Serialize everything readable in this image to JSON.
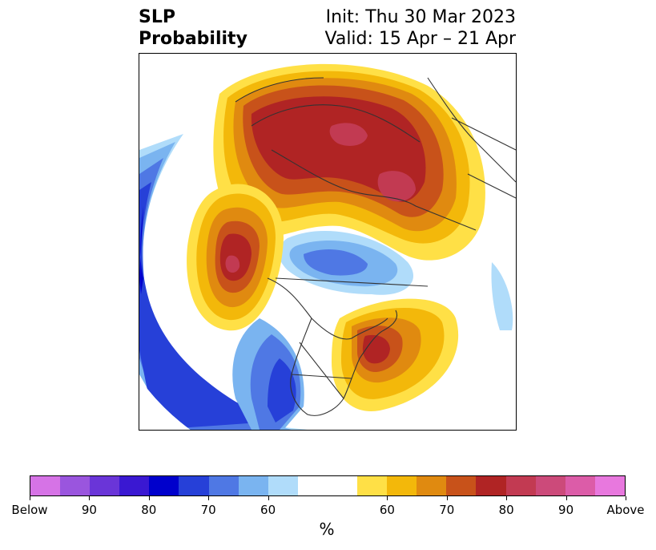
{
  "title": {
    "left_line1": "SLP",
    "left_line2": "Probability",
    "right_line1": "Init: Thu 30 Mar 2023",
    "right_line2": "Valid: 15 Apr – 21 Apr"
  },
  "colorbar": {
    "unit": "%",
    "colors": [
      "#d673e6",
      "#9a55de",
      "#6a35d8",
      "#3a18d2",
      "#0000cc",
      "#2640d8",
      "#4f78e4",
      "#7ab4f0",
      "#b0dcfa",
      "#ffffff",
      "#ffffff",
      "#ffe046",
      "#f3b80a",
      "#e08a10",
      "#c8521a",
      "#b02424",
      "#c23a52",
      "#cc4a7a",
      "#dc5ca8",
      "#e878de"
    ],
    "tick_labels": [
      "Below",
      "90",
      "80",
      "70",
      "60",
      "60",
      "70",
      "80",
      "90",
      "Above"
    ]
  },
  "colors": {
    "above_1": "#ffe046",
    "above_2": "#f3b80a",
    "above_3": "#e08a10",
    "above_4": "#c8521a",
    "above_5": "#b02424",
    "above_6": "#c23a52",
    "below_1": "#b0dcfa",
    "below_2": "#7ab4f0",
    "below_3": "#4f78e4",
    "below_4": "#2640d8",
    "below_5": "#0000cc"
  }
}
